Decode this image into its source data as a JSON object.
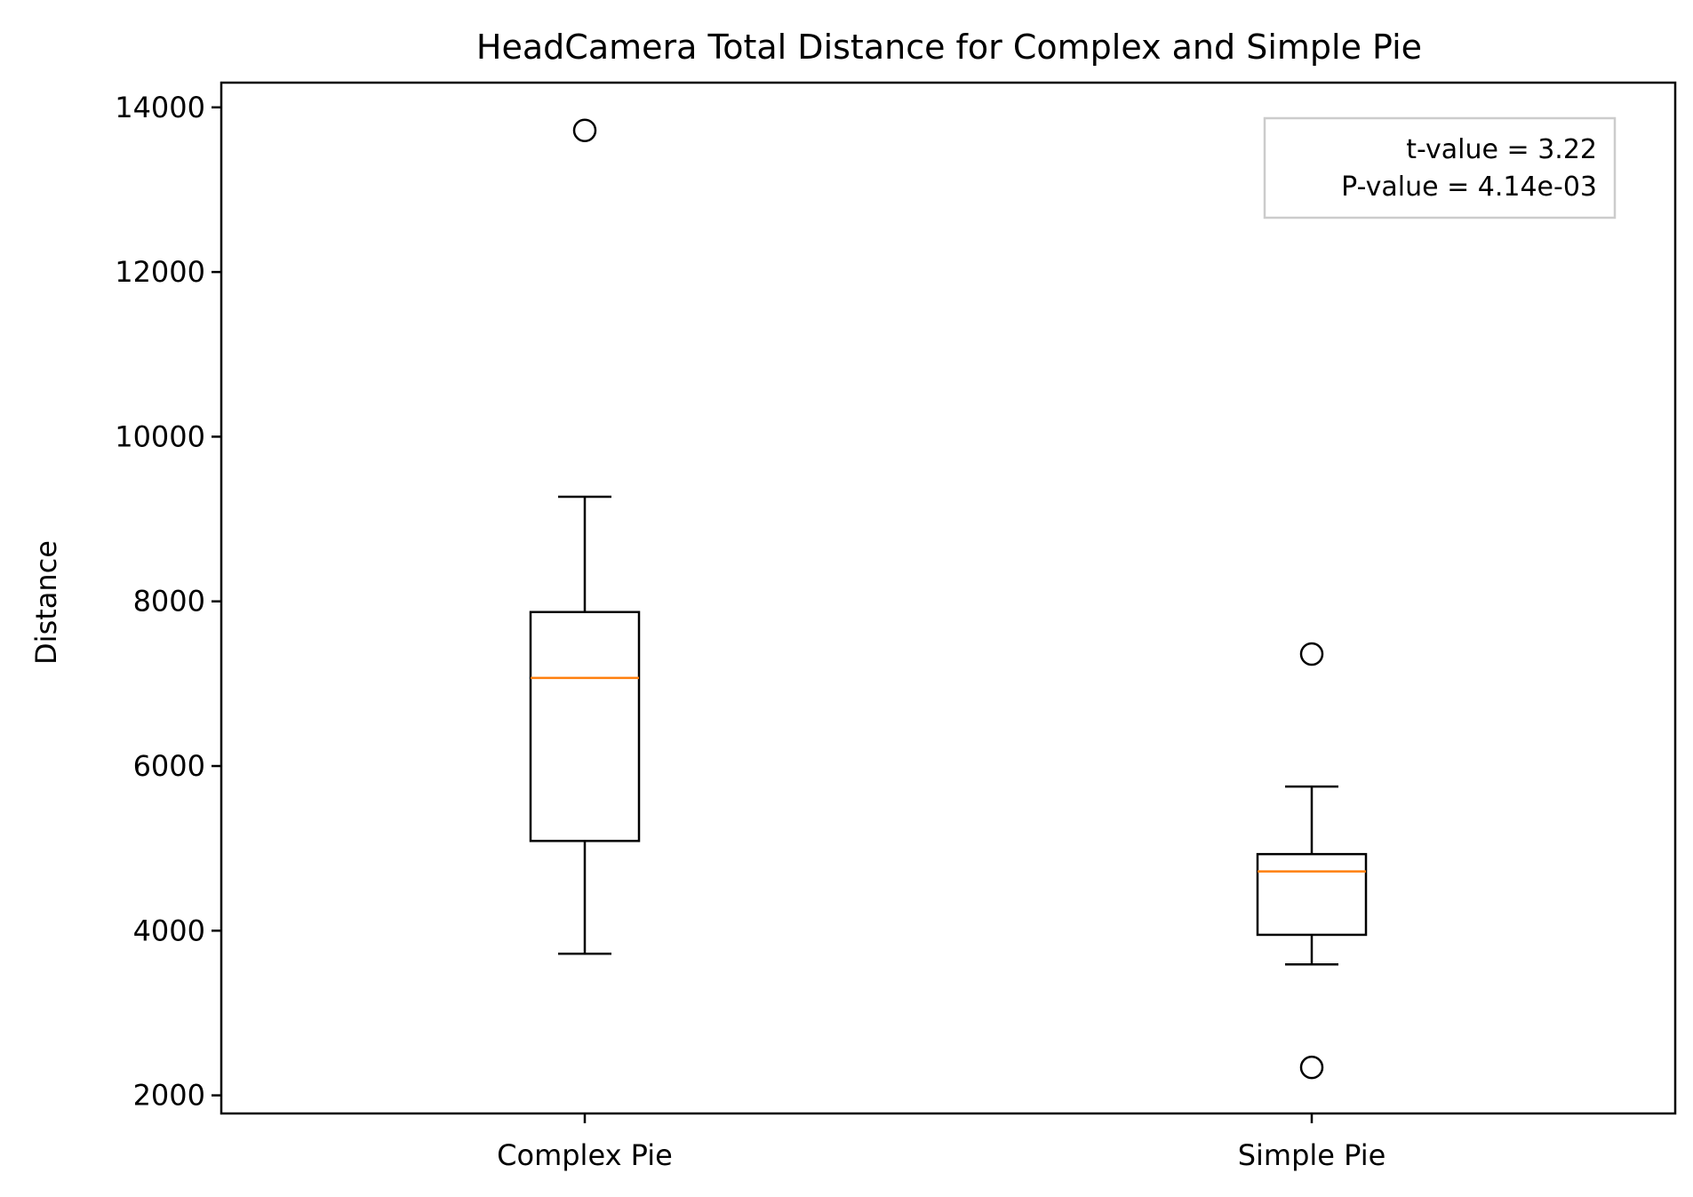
{
  "chart_data": {
    "type": "box",
    "title": "HeadCamera Total Distance for Complex and Simple Pie",
    "xlabel": "",
    "ylabel": "Distance",
    "ylim": [
      1780,
      14300
    ],
    "yticks": [
      2000,
      4000,
      6000,
      8000,
      10000,
      12000,
      14000
    ],
    "categories": [
      "Complex Pie",
      "Simple Pie"
    ],
    "grid": false,
    "boxes": [
      {
        "category": "Complex Pie",
        "whisker_low": 3720,
        "q1": 5090,
        "median": 7070,
        "q3": 7870,
        "whisker_high": 9270,
        "outliers": [
          13720
        ]
      },
      {
        "category": "Simple Pie",
        "whisker_low": 3590,
        "q1": 3950,
        "median": 4720,
        "q3": 4930,
        "whisker_high": 5750,
        "outliers": [
          7360,
          2340
        ]
      }
    ],
    "annotation": {
      "lines": [
        "t-value = 3.22",
        "P-value = 4.14e-03"
      ],
      "placement": "top-right"
    },
    "colors": {
      "box": "#000000",
      "median": "#ff7f0e",
      "annotation_border": "#cccccc"
    }
  }
}
